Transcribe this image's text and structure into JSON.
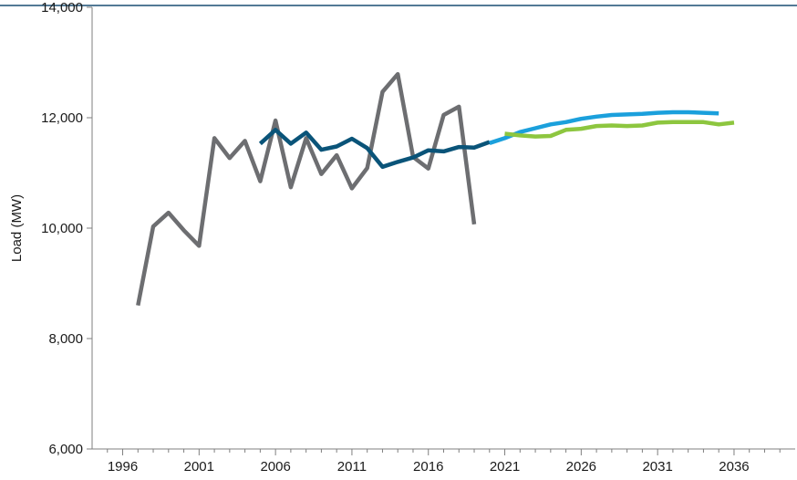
{
  "chart_data": {
    "type": "line",
    "title": "",
    "xlabel": "",
    "ylabel": "Load (MW)",
    "xlim": [
      1994,
      2040
    ],
    "ylim": [
      6000,
      14000
    ],
    "x_ticks": [
      1996,
      2001,
      2006,
      2011,
      2016,
      2021,
      2026,
      2031,
      2036
    ],
    "y_ticks": [
      6000,
      8000,
      10000,
      12000,
      14000
    ],
    "y_tick_labels": [
      "6,000",
      "8,000",
      "10,000",
      "12,000",
      "14,000"
    ],
    "grid": false,
    "legend": "none",
    "series": [
      {
        "color": "#6d6e71",
        "x": [
          1997,
          1998,
          1999,
          2000,
          2001,
          2002,
          2003,
          2004,
          2005,
          2006,
          2007,
          2008,
          2009,
          2010,
          2011,
          2012,
          2013,
          2014,
          2015,
          2016,
          2017,
          2018,
          2019,
          2020
        ],
        "values": [
          8600,
          10030,
          10280,
          9960,
          9680,
          11630,
          11270,
          11580,
          10850,
          11950,
          10740,
          11630,
          10980,
          11320,
          10720,
          11090,
          12470,
          12790,
          11290,
          11080,
          12050,
          12200,
          10070,
          null
        ]
      },
      {
        "color": "#0a5479",
        "x": [
          2005,
          2006,
          2007,
          2008,
          2009,
          2010,
          2011,
          2012,
          2013,
          2014,
          2015,
          2016,
          2017,
          2018,
          2019,
          2020
        ],
        "values": [
          11530,
          11780,
          11530,
          11730,
          11420,
          11480,
          11620,
          11450,
          11110,
          11200,
          11280,
          11410,
          11390,
          11470,
          11460,
          11560
        ]
      },
      {
        "color": "#1ba0dc",
        "x": [
          2020,
          2021,
          2022,
          2023,
          2024,
          2025,
          2026,
          2027,
          2028,
          2029,
          2030,
          2031,
          2032,
          2033,
          2034,
          2035
        ],
        "values": [
          11540,
          11630,
          11740,
          11810,
          11880,
          11920,
          11980,
          12020,
          12050,
          12060,
          12070,
          12090,
          12100,
          12100,
          12090,
          12080
        ]
      },
      {
        "color": "#8dc63f",
        "x": [
          2021,
          2022,
          2023,
          2024,
          2025,
          2026,
          2027,
          2028,
          2029,
          2030,
          2031,
          2032,
          2033,
          2034,
          2035,
          2036
        ],
        "values": [
          11710,
          11680,
          11660,
          11670,
          11780,
          11800,
          11850,
          11860,
          11850,
          11860,
          11910,
          11920,
          11920,
          11920,
          11880,
          11910
        ]
      }
    ]
  }
}
